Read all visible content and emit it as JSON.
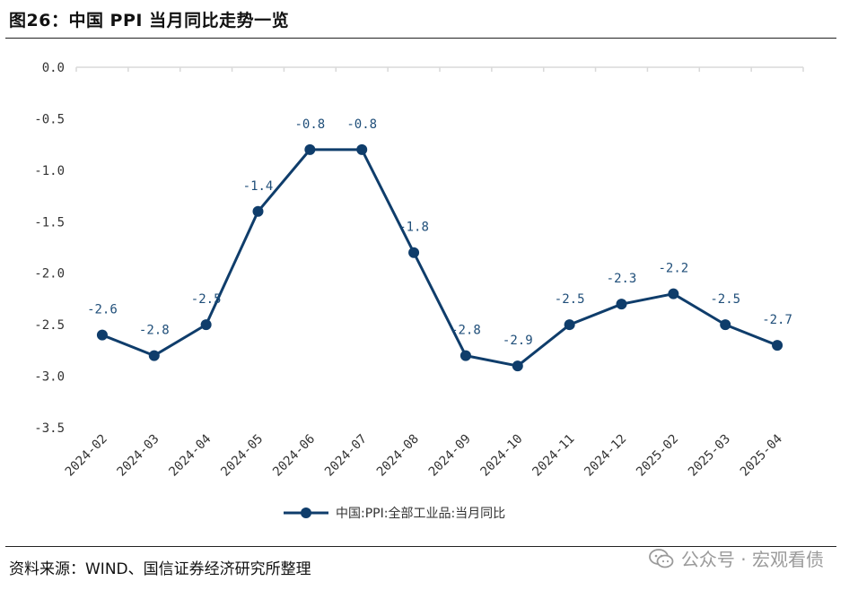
{
  "header": {
    "title": "图26：中国 PPI 当月同比走势一览"
  },
  "footer": {
    "source": "资料来源：WIND、国信证券经济研究所整理",
    "watermark": "公众号 · 宏观看债"
  },
  "colors": {
    "series": "#0f3d6b",
    "grid": "#d9d9d9",
    "label": "#1f4e79"
  },
  "chart_data": {
    "type": "line",
    "x": [
      "2024-02",
      "2024-03",
      "2024-04",
      "2024-05",
      "2024-06",
      "2024-07",
      "2024-08",
      "2024-09",
      "2024-10",
      "2024-11",
      "2024-12",
      "2025-02",
      "2025-03",
      "2025-04"
    ],
    "series": [
      {
        "name": "中国:PPI:全部工业品:当月同比",
        "values": [
          -2.6,
          -2.8,
          -2.5,
          -1.4,
          -0.8,
          -0.8,
          -1.8,
          -2.8,
          -2.9,
          -2.5,
          -2.3,
          -2.2,
          -2.5,
          -2.7
        ],
        "labels": [
          "-2.6",
          "-2.8",
          "-2.5",
          "-1.4",
          "-0.8",
          "-0.8",
          "-1.8",
          "-2.8",
          "-2.9",
          "-2.5",
          "-2.3",
          "-2.2",
          "-2.5",
          "-2.7"
        ]
      }
    ],
    "yticks": [
      "0.0",
      "-0.5",
      "-1.0",
      "-1.5",
      "-2.0",
      "-2.5",
      "-3.0",
      "-3.5"
    ],
    "ylim": [
      -3.5,
      0
    ],
    "grid": false,
    "legend": "bottom-center"
  }
}
